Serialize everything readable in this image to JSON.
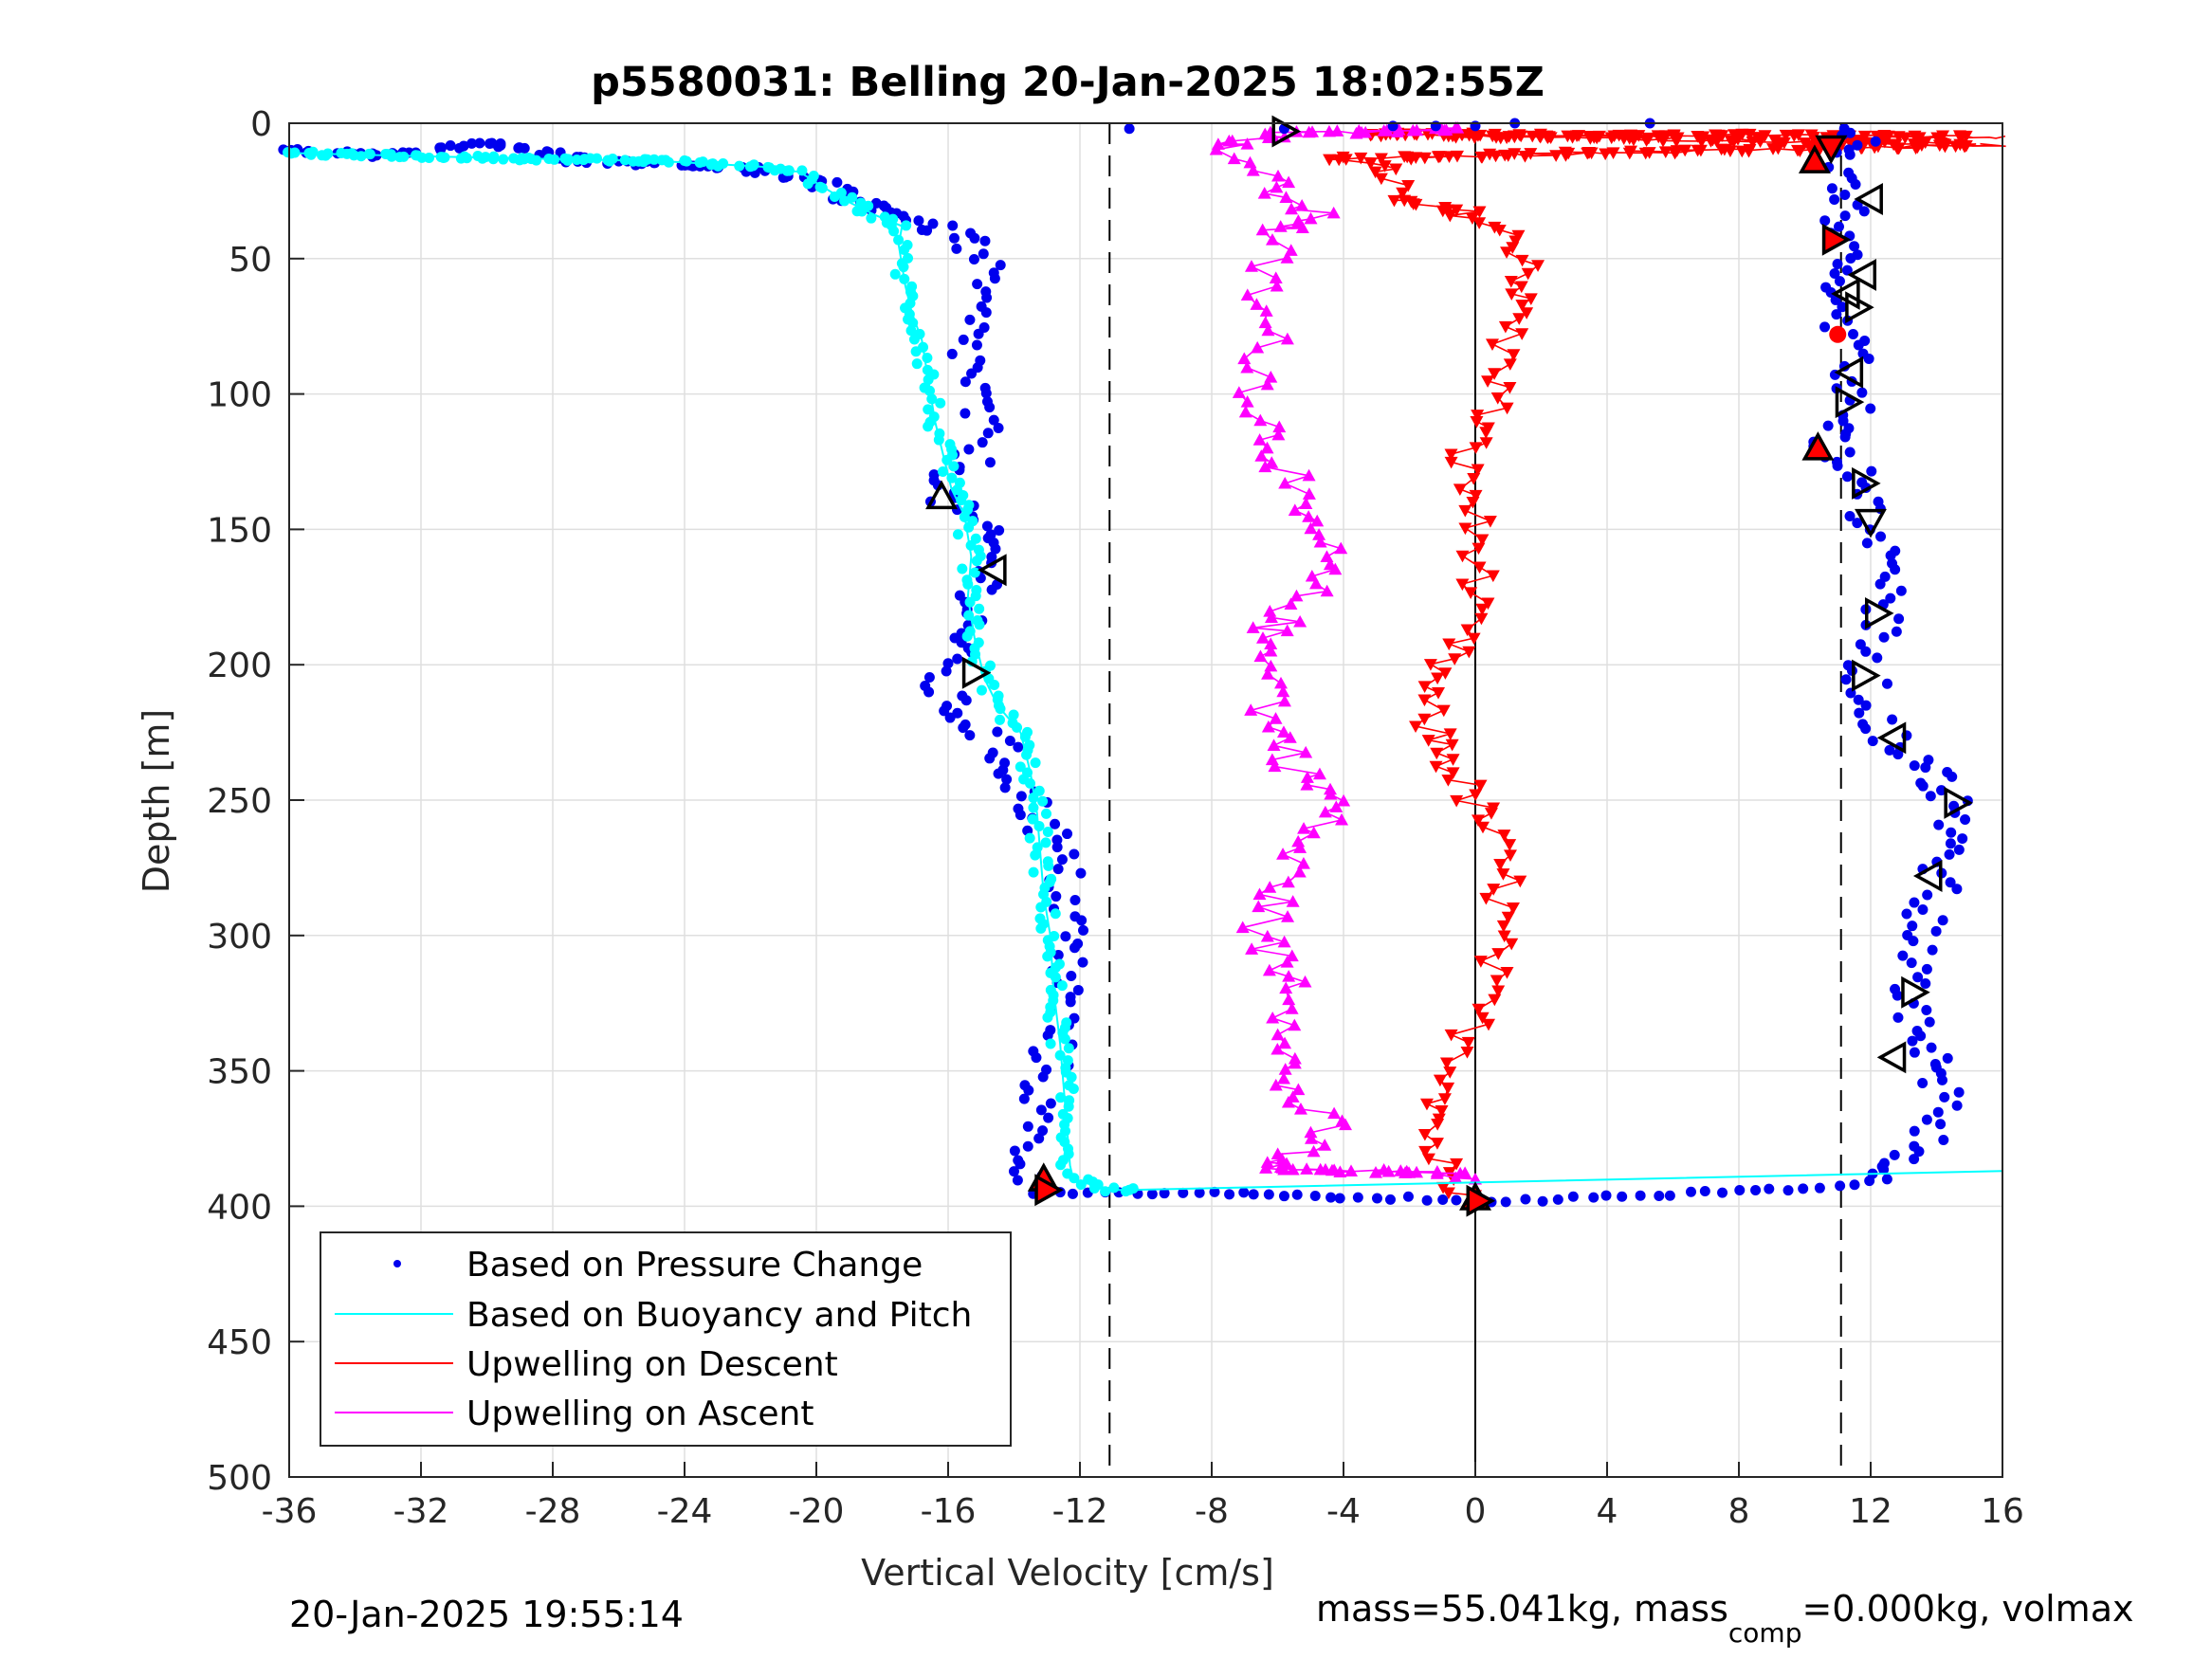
{
  "chart_data": {
    "type": "scatter",
    "title": "p5580031: Belling 20-Jan-2025 18:02:55Z",
    "xlabel": "Vertical Velocity [cm/s]",
    "ylabel": "Depth [m]",
    "xlim": [
      -36,
      16
    ],
    "ylim": [
      0,
      500
    ],
    "y_reversed": true,
    "grid": true,
    "legend_position": "bottom-left",
    "xticks": [
      "-36",
      "-32",
      "-28",
      "-24",
      "-20",
      "-16",
      "-12",
      "-8",
      "-4",
      "0",
      "4",
      "8",
      "12",
      "16"
    ],
    "yticks": [
      "0",
      "50",
      "100",
      "150",
      "200",
      "250",
      "300",
      "350",
      "400",
      "450",
      "500"
    ],
    "vlines": [
      {
        "x": -11.1,
        "style": "dashed",
        "color": "#000000"
      },
      {
        "x": 0,
        "style": "solid",
        "color": "#000000"
      },
      {
        "x": 11.1,
        "style": "dashed",
        "color": "#000000"
      }
    ],
    "legend": [
      {
        "label": "Based on Pressure Change",
        "color": "#0000ee",
        "marker": "dot"
      },
      {
        "label": "Based on Buoyancy and Pitch",
        "color": "#00ffff",
        "marker": "line"
      },
      {
        "label": "Upwelling on Descent",
        "color": "#ff0000",
        "marker": "line"
      },
      {
        "label": "Upwelling on Ascent",
        "color": "#ff00ff",
        "marker": "line"
      }
    ],
    "series": [
      {
        "name": "Based on Pressure Change",
        "color": "#0000ee",
        "dive_profile": [
          [
            -36,
            10
          ],
          [
            -33,
            12
          ],
          [
            -30,
            7
          ],
          [
            -27,
            14
          ],
          [
            -24.7,
            15
          ],
          [
            -22,
            17
          ],
          [
            -20,
            22
          ],
          [
            -19,
            28
          ],
          [
            -17.8,
            32
          ],
          [
            -16.5,
            38
          ],
          [
            -15.3,
            44
          ],
          [
            -15,
            55
          ],
          [
            -15.3,
            70
          ],
          [
            -15.4,
            85
          ],
          [
            -15.2,
            100
          ],
          [
            -15.1,
            115
          ],
          [
            -15.3,
            125
          ],
          [
            -15.8,
            130
          ],
          [
            -16.2,
            138
          ],
          [
            -15.5,
            145
          ],
          [
            -14.7,
            155
          ],
          [
            -14.8,
            165
          ],
          [
            -15,
            175
          ],
          [
            -15.5,
            190
          ],
          [
            -16.2,
            200
          ],
          [
            -16.3,
            210
          ],
          [
            -15.5,
            220
          ],
          [
            -14.5,
            230
          ],
          [
            -13.8,
            245
          ],
          [
            -13.3,
            255
          ],
          [
            -12.8,
            265
          ],
          [
            -12.5,
            280
          ],
          [
            -12.3,
            295
          ],
          [
            -12.4,
            310
          ],
          [
            -12.5,
            325
          ],
          [
            -12.8,
            340
          ],
          [
            -13.1,
            355
          ],
          [
            -13.5,
            370
          ],
          [
            -13.6,
            385
          ],
          [
            -13.3,
            393
          ]
        ],
        "bottom_profile": [
          [
            -13.5,
            395
          ],
          [
            -8,
            395
          ],
          [
            -5.8,
            396
          ],
          [
            -3.6,
            397
          ],
          [
            -2,
            397
          ],
          [
            -1,
            398
          ],
          [
            0,
            398
          ],
          [
            1.5,
            398
          ],
          [
            3,
            397
          ],
          [
            5,
            396
          ],
          [
            7,
            395
          ],
          [
            9,
            394
          ],
          [
            10.5,
            393
          ],
          [
            11.5,
            392
          ],
          [
            12.5,
            390
          ]
        ],
        "climb_profile": [
          [
            12.6,
            388
          ],
          [
            13.5,
            380
          ],
          [
            13.8,
            370
          ],
          [
            14.2,
            355
          ],
          [
            13.8,
            345
          ],
          [
            13.4,
            335
          ],
          [
            13.2,
            320
          ],
          [
            13.4,
            300
          ],
          [
            13.8,
            290
          ],
          [
            14.2,
            275
          ],
          [
            14.6,
            262
          ],
          [
            14.5,
            250
          ],
          [
            13.7,
            240
          ],
          [
            12.8,
            230
          ],
          [
            12.2,
            220
          ],
          [
            11.8,
            205
          ],
          [
            12.2,
            190
          ],
          [
            12.5,
            180
          ],
          [
            12.4,
            170
          ],
          [
            12.3,
            155
          ],
          [
            12,
            145
          ],
          [
            11.8,
            135
          ],
          [
            11.3,
            125
          ],
          [
            10.6,
            118
          ],
          [
            11.3,
            110
          ],
          [
            11.5,
            95
          ],
          [
            11.2,
            80
          ],
          [
            10.9,
            70
          ],
          [
            11.2,
            58
          ],
          [
            11.7,
            50
          ],
          [
            11.1,
            40
          ],
          [
            11.5,
            30
          ],
          [
            11.2,
            22
          ],
          [
            10.8,
            12
          ],
          [
            11.7,
            5
          ],
          [
            11.2,
            2
          ]
        ],
        "surface_points": [
          [
            -10.5,
            2
          ],
          [
            -5.8,
            2
          ],
          [
            -2.5,
            1
          ],
          [
            -1.2,
            1
          ],
          [
            0,
            1
          ],
          [
            1.2,
            0
          ],
          [
            5.3,
            0
          ]
        ]
      },
      {
        "name": "Based on Buoyancy and Pitch",
        "color": "#00ffff",
        "profile": [
          [
            -36,
            11
          ],
          [
            -29,
            13
          ],
          [
            -24.7,
            14
          ],
          [
            -21.7,
            16
          ],
          [
            -20.5,
            18
          ],
          [
            -20,
            22
          ],
          [
            -19.2,
            28
          ],
          [
            -18.2,
            34
          ],
          [
            -17.4,
            38
          ],
          [
            -17.5,
            45
          ],
          [
            -17.3,
            60
          ],
          [
            -17.1,
            70
          ],
          [
            -16.8,
            80
          ],
          [
            -16.6,
            95
          ],
          [
            -16.4,
            110
          ],
          [
            -16.1,
            125
          ],
          [
            -15.9,
            135
          ],
          [
            -15.5,
            145
          ],
          [
            -15.3,
            160
          ],
          [
            -15.4,
            175
          ],
          [
            -15.2,
            190
          ],
          [
            -14.9,
            205
          ],
          [
            -14.5,
            215
          ],
          [
            -13.8,
            225
          ],
          [
            -13.5,
            240
          ],
          [
            -13.3,
            255
          ],
          [
            -13.2,
            270
          ],
          [
            -13.1,
            285
          ],
          [
            -12.9,
            300
          ],
          [
            -12.8,
            320
          ],
          [
            -12.6,
            340
          ],
          [
            -12.5,
            355
          ],
          [
            -12.4,
            370
          ],
          [
            -12.3,
            385
          ],
          [
            -12.2,
            390
          ],
          [
            -11,
            394
          ],
          [
            -10.5,
            394
          ],
          [
            16,
            387
          ]
        ]
      },
      {
        "name": "Upwelling on Descent",
        "color": "#ff0000",
        "profile": [
          [
            15.9,
            5
          ],
          [
            -3.2,
            4
          ],
          [
            15.9,
            8
          ],
          [
            -4,
            13
          ],
          [
            -2.7,
            18
          ],
          [
            -2.3,
            23
          ],
          [
            -2.7,
            28
          ],
          [
            -2,
            30
          ],
          [
            -0.4,
            33
          ],
          [
            0.5,
            38
          ],
          [
            0.9,
            42
          ],
          [
            1.3,
            46
          ],
          [
            1.8,
            52
          ],
          [
            1.6,
            58
          ],
          [
            1.2,
            65
          ],
          [
            1.4,
            70
          ],
          [
            1,
            78
          ],
          [
            0.8,
            85
          ],
          [
            1,
            92
          ],
          [
            0.7,
            98
          ],
          [
            0.5,
            105
          ],
          [
            0.2,
            112
          ],
          [
            -0.3,
            120
          ],
          [
            -0.4,
            128
          ],
          [
            -0.2,
            135
          ],
          [
            0,
            140
          ],
          [
            -0.1,
            150
          ],
          [
            0.2,
            160
          ],
          [
            0,
            170
          ],
          [
            -0.3,
            180
          ],
          [
            -0.5,
            190
          ],
          [
            -1,
            200
          ],
          [
            -1.6,
            210
          ],
          [
            -1.5,
            220
          ],
          [
            -1,
            230
          ],
          [
            -0.6,
            240
          ],
          [
            -0.1,
            250
          ],
          [
            0.4,
            260
          ],
          [
            0.6,
            270
          ],
          [
            0.9,
            280
          ],
          [
            0.8,
            290
          ],
          [
            0.6,
            300
          ],
          [
            0.5,
            310
          ],
          [
            0.2,
            320
          ],
          [
            0,
            330
          ],
          [
            -0.2,
            340
          ],
          [
            -0.5,
            350
          ],
          [
            -0.8,
            360
          ],
          [
            -1.2,
            370
          ],
          [
            -1.3,
            380
          ],
          [
            -0.9,
            387
          ],
          [
            -0.5,
            393
          ],
          [
            0,
            396
          ]
        ]
      },
      {
        "name": "Upwelling on Ascent",
        "color": "#ff00ff",
        "profile": [
          [
            0,
            2
          ],
          [
            -5.8,
            4
          ],
          [
            -7.5,
            8
          ],
          [
            -6.8,
            15
          ],
          [
            -6.3,
            22
          ],
          [
            -5.5,
            30
          ],
          [
            -4.7,
            35
          ],
          [
            -6,
            40
          ],
          [
            -6.3,
            50
          ],
          [
            -6.5,
            60
          ],
          [
            -6.6,
            70
          ],
          [
            -6.3,
            80
          ],
          [
            -6.4,
            90
          ],
          [
            -6.5,
            100
          ],
          [
            -6.4,
            110
          ],
          [
            -6,
            120
          ],
          [
            -5.6,
            130
          ],
          [
            -5.8,
            140
          ],
          [
            -5,
            150
          ],
          [
            -4.6,
            160
          ],
          [
            -5,
            170
          ],
          [
            -5.6,
            180
          ],
          [
            -6.5,
            190
          ],
          [
            -5.8,
            200
          ],
          [
            -6,
            210
          ],
          [
            -6.3,
            220
          ],
          [
            -5.7,
            230
          ],
          [
            -5.3,
            240
          ],
          [
            -4.2,
            250
          ],
          [
            -4.8,
            260
          ],
          [
            -5.6,
            270
          ],
          [
            -5.8,
            280
          ],
          [
            -6.2,
            290
          ],
          [
            -6.5,
            300
          ],
          [
            -6,
            310
          ],
          [
            -5.2,
            320
          ],
          [
            -5.5,
            330
          ],
          [
            -5.2,
            340
          ],
          [
            -6,
            350
          ],
          [
            -5.5,
            360
          ],
          [
            -4.5,
            370
          ],
          [
            -5.3,
            380
          ],
          [
            -6.5,
            386
          ],
          [
            -0.5,
            388
          ],
          [
            0,
            390
          ]
        ]
      }
    ],
    "markers": [
      {
        "type": "right-open",
        "x": -5.8,
        "y": 3
      },
      {
        "type": "up-open",
        "x": -16.2,
        "y": 138
      },
      {
        "type": "left-open",
        "x": -14.6,
        "y": 165
      },
      {
        "type": "right-open",
        "x": -15.2,
        "y": 203
      },
      {
        "type": "up-red",
        "x": -13.1,
        "y": 390
      },
      {
        "type": "right-red",
        "x": -13,
        "y": 394
      },
      {
        "type": "up-red",
        "x": 0,
        "y": 397
      },
      {
        "type": "right-red",
        "x": 0.1,
        "y": 398
      },
      {
        "type": "down-red",
        "x": 10.8,
        "y": 9
      },
      {
        "type": "up-red",
        "x": 10.3,
        "y": 14
      },
      {
        "type": "left-open",
        "x": 12,
        "y": 28
      },
      {
        "type": "right-red",
        "x": 10.9,
        "y": 43
      },
      {
        "type": "left-open",
        "x": 11.8,
        "y": 56
      },
      {
        "type": "left-open",
        "x": 11.3,
        "y": 63
      },
      {
        "type": "right-open",
        "x": 11.6,
        "y": 68
      },
      {
        "type": "dot-red",
        "x": 11,
        "y": 78
      },
      {
        "type": "left-open",
        "x": 11.4,
        "y": 92
      },
      {
        "type": "right-open",
        "x": 11.3,
        "y": 103
      },
      {
        "type": "up-red",
        "x": 10.4,
        "y": 120
      },
      {
        "type": "right-open",
        "x": 11.8,
        "y": 133
      },
      {
        "type": "down-open",
        "x": 12,
        "y": 147
      },
      {
        "type": "right-open",
        "x": 12.2,
        "y": 181
      },
      {
        "type": "right-open",
        "x": 11.8,
        "y": 204
      },
      {
        "type": "left-open",
        "x": 12.7,
        "y": 227
      },
      {
        "type": "right-open",
        "x": 14.6,
        "y": 251
      },
      {
        "type": "left-open",
        "x": 13.8,
        "y": 278
      },
      {
        "type": "right-open",
        "x": 13.3,
        "y": 321
      },
      {
        "type": "left-open",
        "x": 12.7,
        "y": 345
      }
    ]
  },
  "footer": {
    "timestamp": "20-Jan-2025 19:55:14",
    "mass_prefix": "mass=55.041kg, mass",
    "mass_subscript": "comp",
    "mass_suffix": "=0.000kg, volmax"
  }
}
